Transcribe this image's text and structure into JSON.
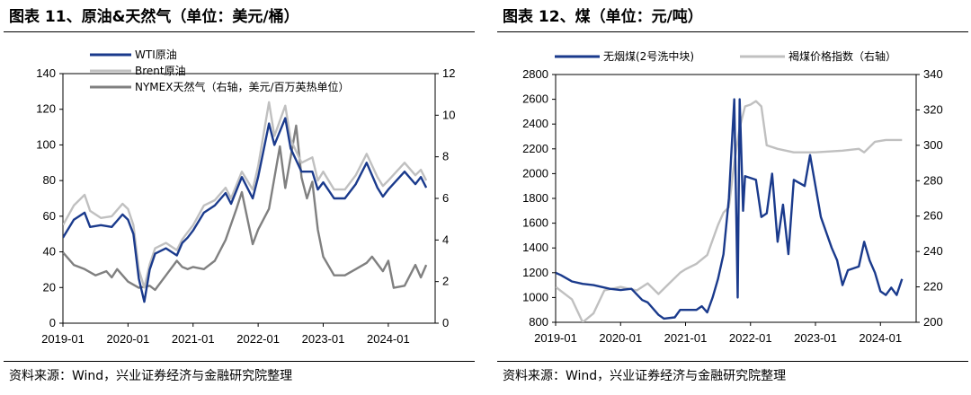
{
  "panels": {
    "left": {
      "title": "图表 11、原油&天然气（单位：美元/桶）",
      "source": "资料来源：Wind，兴业证券经济与金融研究院整理"
    },
    "right": {
      "title": "图表 12、煤（单位：元/吨）",
      "source": "资料来源：Wind，兴业证券经济与金融研究院整理"
    }
  },
  "chart_data": [
    {
      "type": "line",
      "x_ticks": [
        "2019-01",
        "2020-01",
        "2021-01",
        "2022-01",
        "2023-01",
        "2024-01"
      ],
      "y_left": {
        "ticks": [
          "0",
          "20",
          "40",
          "60",
          "80",
          "100",
          "120",
          "140"
        ],
        "lim": [
          0,
          140
        ]
      },
      "y_right": {
        "ticks": [
          "0",
          "2",
          "4",
          "6",
          "8",
          "10",
          "12"
        ],
        "lim": [
          0,
          12
        ]
      },
      "series": [
        {
          "name": "WTI原油",
          "axis": "left",
          "color": "#1a3a8c",
          "points": [
            [
              "2019-01",
              48
            ],
            [
              "2019-03",
              58
            ],
            [
              "2019-05",
              62
            ],
            [
              "2019-06",
              54
            ],
            [
              "2019-08",
              55
            ],
            [
              "2019-10",
              54
            ],
            [
              "2019-12",
              61
            ],
            [
              "2020-01",
              58
            ],
            [
              "2020-02",
              50
            ],
            [
              "2020-03",
              25
            ],
            [
              "2020-04",
              12
            ],
            [
              "2020-05",
              30
            ],
            [
              "2020-06",
              39
            ],
            [
              "2020-08",
              42
            ],
            [
              "2020-10",
              38
            ],
            [
              "2020-11",
              45
            ],
            [
              "2020-12",
              48
            ],
            [
              "2021-01",
              52
            ],
            [
              "2021-03",
              62
            ],
            [
              "2021-05",
              66
            ],
            [
              "2021-07",
              73
            ],
            [
              "2021-08",
              67
            ],
            [
              "2021-10",
              82
            ],
            [
              "2021-12",
              70
            ],
            [
              "2022-01",
              82
            ],
            [
              "2022-03",
              112
            ],
            [
              "2022-04",
              100
            ],
            [
              "2022-06",
              115
            ],
            [
              "2022-07",
              98
            ],
            [
              "2022-09",
              85
            ],
            [
              "2022-11",
              85
            ],
            [
              "2022-12",
              75
            ],
            [
              "2023-01",
              79
            ],
            [
              "2023-03",
              70
            ],
            [
              "2023-05",
              70
            ],
            [
              "2023-07",
              78
            ],
            [
              "2023-09",
              90
            ],
            [
              "2023-11",
              76
            ],
            [
              "2023-12",
              71
            ],
            [
              "2024-01",
              75
            ],
            [
              "2024-04",
              85
            ],
            [
              "2024-06",
              78
            ],
            [
              "2024-07",
              82
            ],
            [
              "2024-08",
              76
            ]
          ]
        },
        {
          "name": "Brent原油",
          "axis": "left",
          "color": "#c0c0c0",
          "points": [
            [
              "2019-01",
              55
            ],
            [
              "2019-03",
              66
            ],
            [
              "2019-05",
              72
            ],
            [
              "2019-06",
              63
            ],
            [
              "2019-08",
              59
            ],
            [
              "2019-10",
              60
            ],
            [
              "2019-12",
              67
            ],
            [
              "2020-01",
              64
            ],
            [
              "2020-02",
              55
            ],
            [
              "2020-03",
              30
            ],
            [
              "2020-04",
              20
            ],
            [
              "2020-05",
              33
            ],
            [
              "2020-06",
              42
            ],
            [
              "2020-08",
              45
            ],
            [
              "2020-10",
              41
            ],
            [
              "2020-11",
              47
            ],
            [
              "2020-12",
              51
            ],
            [
              "2021-01",
              55
            ],
            [
              "2021-03",
              66
            ],
            [
              "2021-05",
              69
            ],
            [
              "2021-07",
              76
            ],
            [
              "2021-08",
              70
            ],
            [
              "2021-10",
              85
            ],
            [
              "2021-12",
              75
            ],
            [
              "2022-01",
              88
            ],
            [
              "2022-03",
              124
            ],
            [
              "2022-04",
              105
            ],
            [
              "2022-06",
              122
            ],
            [
              "2022-07",
              103
            ],
            [
              "2022-09",
              90
            ],
            [
              "2022-11",
              93
            ],
            [
              "2022-12",
              80
            ],
            [
              "2023-01",
              85
            ],
            [
              "2023-03",
              75
            ],
            [
              "2023-05",
              75
            ],
            [
              "2023-07",
              83
            ],
            [
              "2023-09",
              95
            ],
            [
              "2023-11",
              82
            ],
            [
              "2023-12",
              77
            ],
            [
              "2024-01",
              80
            ],
            [
              "2024-04",
              90
            ],
            [
              "2024-06",
              83
            ],
            [
              "2024-07",
              86
            ],
            [
              "2024-08",
              80
            ]
          ]
        },
        {
          "name": "NYMEX天然气（右轴，美元/百万英热单位）",
          "axis": "right",
          "color": "#808080",
          "points": [
            [
              "2019-01",
              3.4
            ],
            [
              "2019-03",
              2.8
            ],
            [
              "2019-05",
              2.6
            ],
            [
              "2019-07",
              2.3
            ],
            [
              "2019-09",
              2.5
            ],
            [
              "2019-10",
              2.2
            ],
            [
              "2019-11",
              2.6
            ],
            [
              "2020-01",
              2.0
            ],
            [
              "2020-03",
              1.7
            ],
            [
              "2020-05",
              1.8
            ],
            [
              "2020-06",
              1.6
            ],
            [
              "2020-08",
              2.3
            ],
            [
              "2020-10",
              3.0
            ],
            [
              "2020-11",
              2.7
            ],
            [
              "2020-12",
              2.6
            ],
            [
              "2021-01",
              2.7
            ],
            [
              "2021-03",
              2.6
            ],
            [
              "2021-05",
              3.0
            ],
            [
              "2021-07",
              4.0
            ],
            [
              "2021-09",
              5.5
            ],
            [
              "2021-10",
              6.3
            ],
            [
              "2021-12",
              3.8
            ],
            [
              "2022-01",
              4.5
            ],
            [
              "2022-03",
              5.5
            ],
            [
              "2022-05",
              8.5
            ],
            [
              "2022-06",
              6.5
            ],
            [
              "2022-08",
              9.5
            ],
            [
              "2022-09",
              7.0
            ],
            [
              "2022-10",
              6.0
            ],
            [
              "2022-11",
              6.8
            ],
            [
              "2022-12",
              4.5
            ],
            [
              "2023-01",
              3.2
            ],
            [
              "2023-03",
              2.3
            ],
            [
              "2023-05",
              2.3
            ],
            [
              "2023-07",
              2.6
            ],
            [
              "2023-09",
              2.9
            ],
            [
              "2023-10",
              3.2
            ],
            [
              "2023-12",
              2.5
            ],
            [
              "2024-01",
              3.0
            ],
            [
              "2024-02",
              1.7
            ],
            [
              "2024-04",
              1.8
            ],
            [
              "2024-06",
              2.8
            ],
            [
              "2024-07",
              2.2
            ],
            [
              "2024-08",
              2.8
            ]
          ]
        }
      ]
    },
    {
      "type": "line",
      "x_ticks": [
        "2019-01",
        "2020-01",
        "2021-01",
        "2022-01",
        "2023-01",
        "2024-01"
      ],
      "y_left": {
        "ticks": [
          "800",
          "1000",
          "1200",
          "1400",
          "1600",
          "1800",
          "2000",
          "2200",
          "2400",
          "2600",
          "2800"
        ],
        "lim": [
          800,
          2800
        ]
      },
      "y_right": {
        "ticks": [
          "200",
          "220",
          "240",
          "260",
          "280",
          "300",
          "320",
          "340"
        ],
        "lim": [
          200,
          340
        ]
      },
      "series": [
        {
          "name": "无烟煤(2号洗中块)",
          "axis": "left",
          "color": "#1a3a8c",
          "points": [
            [
              "2019-01",
              1200
            ],
            [
              "2019-02",
              1180
            ],
            [
              "2019-04",
              1130
            ],
            [
              "2019-06",
              1110
            ],
            [
              "2019-08",
              1100
            ],
            [
              "2019-11",
              1070
            ],
            [
              "2020-01",
              1060
            ],
            [
              "2020-03",
              1070
            ],
            [
              "2020-05",
              980
            ],
            [
              "2020-06",
              960
            ],
            [
              "2020-08",
              860
            ],
            [
              "2020-09",
              830
            ],
            [
              "2020-11",
              840
            ],
            [
              "2020-12",
              900
            ],
            [
              "2021-03",
              900
            ],
            [
              "2021-04",
              930
            ],
            [
              "2021-05",
              880
            ],
            [
              "2021-06",
              1000
            ],
            [
              "2021-07",
              1150
            ],
            [
              "2021-08",
              1350
            ],
            [
              "2021-09",
              1800
            ],
            [
              "2021-10",
              2600
            ],
            [
              "2021-10-20",
              1000
            ],
            [
              "2021-11",
              2600
            ],
            [
              "2021-11-20",
              1700
            ],
            [
              "2021-12",
              1980
            ],
            [
              "2022-02",
              1950
            ],
            [
              "2022-03",
              1650
            ],
            [
              "2022-04",
              1680
            ],
            [
              "2022-05",
              2000
            ],
            [
              "2022-06",
              1450
            ],
            [
              "2022-07",
              1750
            ],
            [
              "2022-08",
              1350
            ],
            [
              "2022-09",
              1950
            ],
            [
              "2022-11",
              1900
            ],
            [
              "2022-12",
              2150
            ],
            [
              "2023-01",
              1900
            ],
            [
              "2023-02",
              1650
            ],
            [
              "2023-04",
              1400
            ],
            [
              "2023-05",
              1300
            ],
            [
              "2023-06",
              1100
            ],
            [
              "2023-07",
              1220
            ],
            [
              "2023-09",
              1250
            ],
            [
              "2023-10",
              1450
            ],
            [
              "2023-11",
              1300
            ],
            [
              "2023-12",
              1200
            ],
            [
              "2024-01",
              1050
            ],
            [
              "2024-02",
              1020
            ],
            [
              "2024-03",
              1080
            ],
            [
              "2024-04",
              1020
            ],
            [
              "2024-05",
              1150
            ]
          ]
        },
        {
          "name": "褐煤价格指数（右轴）",
          "axis": "right",
          "color": "#c0c0c0",
          "points": [
            [
              "2019-01",
              220
            ],
            [
              "2019-04",
              213
            ],
            [
              "2019-06",
              200
            ],
            [
              "2019-08",
              205
            ],
            [
              "2019-10",
              218
            ],
            [
              "2020-01",
              220
            ],
            [
              "2020-04",
              218
            ],
            [
              "2020-06",
              222
            ],
            [
              "2020-08",
              216
            ],
            [
              "2020-10",
              222
            ],
            [
              "2020-12",
              228
            ],
            [
              "2021-01",
              230
            ],
            [
              "2021-03",
              233
            ],
            [
              "2021-05",
              238
            ],
            [
              "2021-07",
              255
            ],
            [
              "2021-08",
              262
            ],
            [
              "2021-09",
              265
            ],
            [
              "2021-10",
              290
            ],
            [
              "2021-11",
              310
            ],
            [
              "2021-12",
              322
            ],
            [
              "2022-01",
              323
            ],
            [
              "2022-02",
              325
            ],
            [
              "2022-03",
              322
            ],
            [
              "2022-04",
              300
            ],
            [
              "2022-06",
              298
            ],
            [
              "2022-09",
              296
            ],
            [
              "2023-01",
              296
            ],
            [
              "2023-06",
              297
            ],
            [
              "2023-09",
              298
            ],
            [
              "2023-10",
              296
            ],
            [
              "2023-12",
              302
            ],
            [
              "2024-02",
              303
            ],
            [
              "2024-05",
              303
            ]
          ]
        }
      ]
    }
  ]
}
